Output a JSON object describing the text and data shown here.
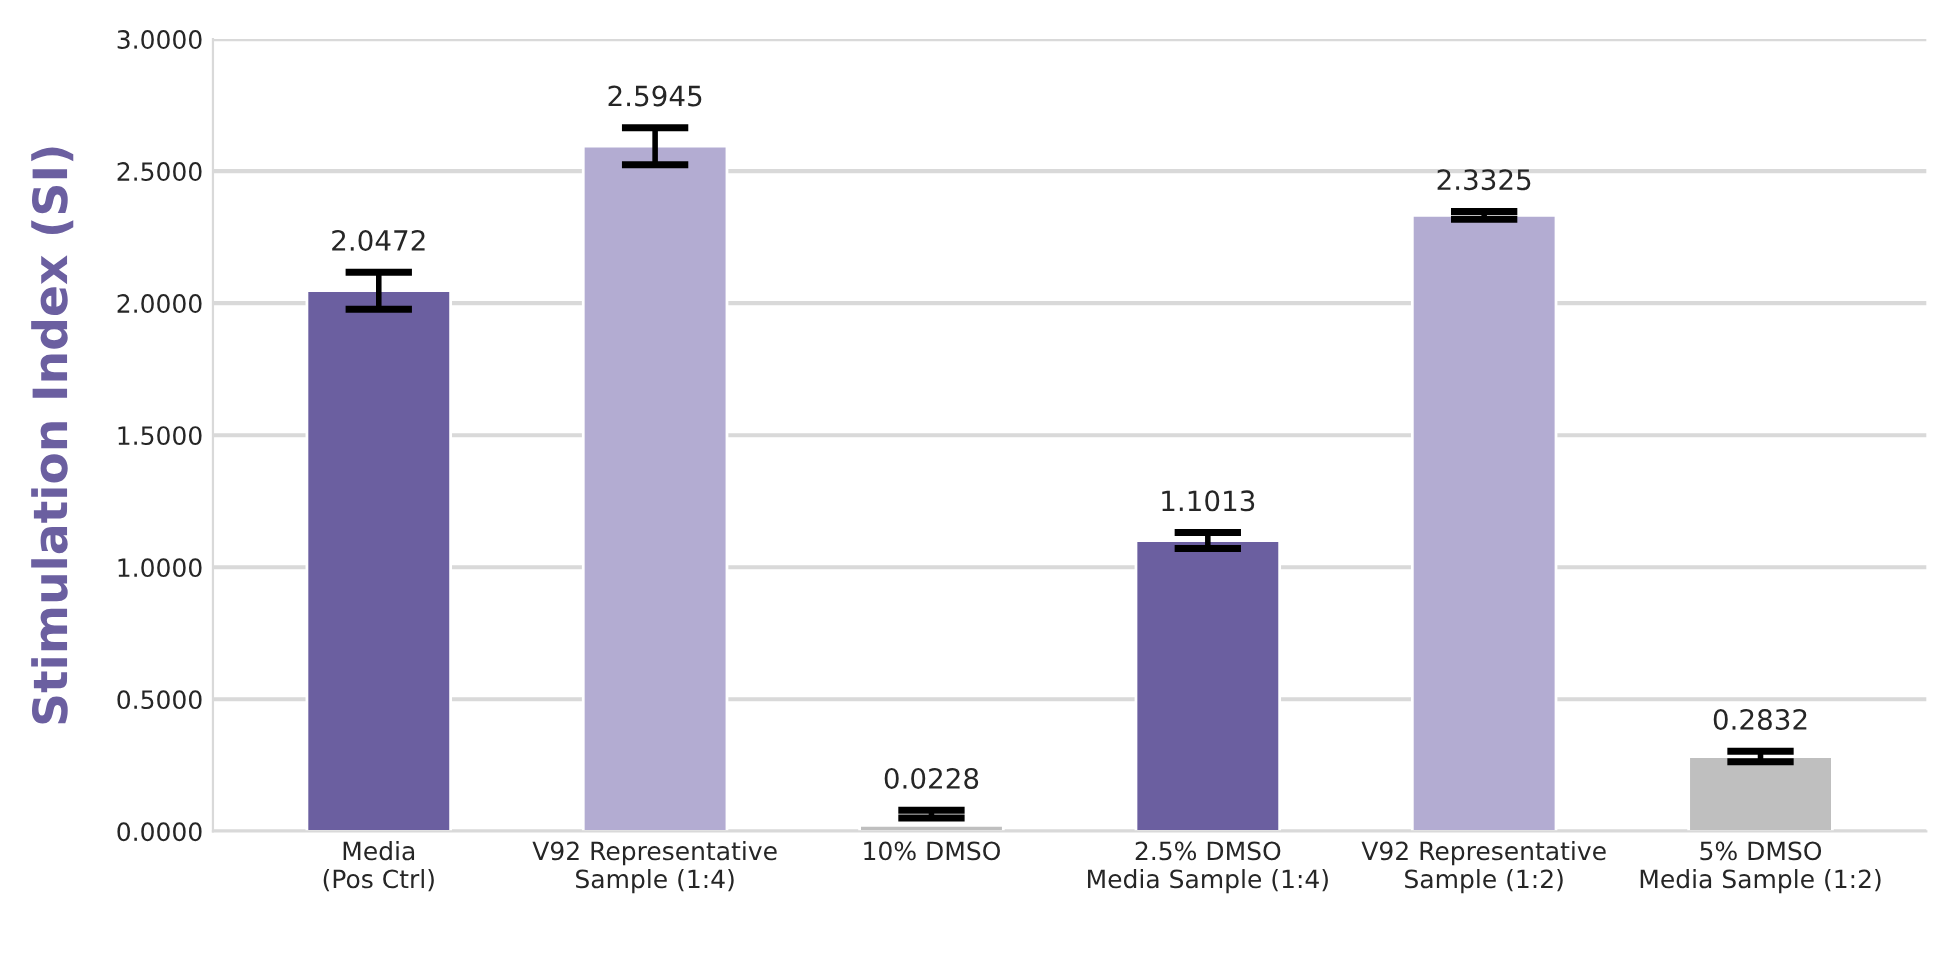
{
  "chart_data": {
    "type": "bar",
    "ylabel": "Stimulation Index (SI)",
    "categories": [
      "Media\n(Pos Ctrl)",
      "V92 Representative\nSample (1:4)",
      "10% DMSO",
      "2.5% DMSO\nMedia Sample (1:4)",
      "V92 Representative\nSample (1:2)",
      "5% DMSO\nMedia Sample (1:2)"
    ],
    "values": [
      2.0472,
      2.5945,
      0.0228,
      1.1013,
      2.3325,
      0.2832
    ],
    "errors": [
      0.07,
      0.07,
      [
        0.05,
        0.08
      ],
      0.03,
      0.015,
      0.02
    ],
    "colors": [
      "#6b5fa0",
      "#b3acd2",
      "#bfbfbf",
      "#6b5fa0",
      "#b3acd2",
      "#bfbfbf"
    ],
    "ylim": [
      0,
      3
    ],
    "yticks": [
      {
        "value": 0,
        "label": "0.0000"
      },
      {
        "value": 0.5,
        "label": "0.5000"
      },
      {
        "value": 1,
        "label": "1.0000"
      },
      {
        "value": 1.5,
        "label": "1.5000"
      },
      {
        "value": 2,
        "label": "2.0000"
      },
      {
        "value": 2.5,
        "label": "2.5000"
      },
      {
        "value": 3,
        "label": "3.0000"
      }
    ],
    "grid": "y",
    "data_labels": true
  }
}
